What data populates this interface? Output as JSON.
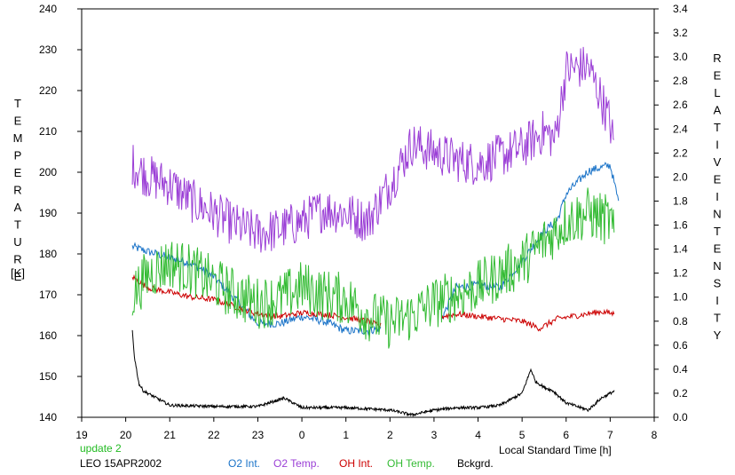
{
  "chart_data": {
    "type": "line",
    "station": "LEO 15APR2002",
    "update_label": "update 2",
    "xlabel": "Local Standard Time [h]",
    "ylabel_left_letters": [
      "T",
      "E",
      "M",
      "P",
      "E",
      "R",
      "A",
      "T",
      "U",
      "R",
      "E"
    ],
    "ylabel_left_unit": "[K]",
    "ylabel_right_word1": [
      "R",
      "E",
      "L",
      "A",
      "T",
      "I",
      "V",
      "E"
    ],
    "ylabel_right_word2": [
      "I",
      "N",
      "T",
      "E",
      "N",
      "S",
      "I",
      "T",
      "Y"
    ],
    "x_ticks": [
      "19",
      "20",
      "21",
      "22",
      "23",
      "0",
      "1",
      "2",
      "3",
      "4",
      "5",
      "6",
      "7",
      "8"
    ],
    "x_range": [
      19,
      32
    ],
    "y_left_ticks": [
      "140",
      "150",
      "160",
      "170",
      "180",
      "190",
      "200",
      "210",
      "220",
      "230",
      "240"
    ],
    "y_left_range": [
      140,
      240
    ],
    "y_right_ticks": [
      "0.0",
      "0.2",
      "0.4",
      "0.6",
      "0.8",
      "1.0",
      "1.2",
      "1.4",
      "1.6",
      "1.8",
      "2.0",
      "2.2",
      "2.4",
      "2.6",
      "2.8",
      "3.0",
      "3.2",
      "3.4"
    ],
    "y_right_range": [
      0,
      3.4
    ],
    "colors": {
      "o2_int": "#1a73c8",
      "o2_temp": "#9b3fd6",
      "oh_int": "#cc0000",
      "oh_temp": "#33bb33",
      "bckgrd": "#000000",
      "update": "#22bb22"
    },
    "series": [
      {
        "name": "O2 Int.",
        "axis": "right",
        "x": [
          20.15,
          20.5,
          21.0,
          21.5,
          22.0,
          22.5,
          23.0,
          23.5,
          24.0,
          24.5,
          25.0,
          25.5,
          25.75,
          27.2,
          27.5,
          28.0,
          28.5,
          29.0,
          29.5,
          29.8,
          30.0,
          30.5,
          31.0,
          31.2
        ],
        "y": [
          1.42,
          1.38,
          1.33,
          1.28,
          1.17,
          0.98,
          0.78,
          0.78,
          0.84,
          0.8,
          0.72,
          0.72,
          0.74,
          0.84,
          1.08,
          1.1,
          1.08,
          1.3,
          1.55,
          1.64,
          1.86,
          2.05,
          2.1,
          1.78
        ]
      },
      {
        "name": "O2 Temp.",
        "axis": "left",
        "x": [
          20.15,
          20.5,
          21.0,
          21.5,
          22.0,
          22.5,
          23.0,
          23.5,
          24.0,
          24.5,
          25.0,
          25.5,
          26.0,
          26.5,
          27.0,
          27.5,
          28.0,
          28.5,
          29.0,
          29.5,
          29.75,
          30.0,
          30.5,
          30.8,
          31.0,
          31.1
        ],
        "y": [
          202,
          199,
          197,
          193,
          190,
          187,
          185,
          186,
          188,
          191,
          190,
          188,
          197,
          207,
          205,
          203,
          202,
          204,
          206,
          210,
          208,
          225,
          226,
          218,
          212,
          205
        ]
      },
      {
        "name": "OH Int.",
        "axis": "right",
        "x": [
          20.15,
          20.5,
          21.0,
          21.5,
          22.0,
          22.5,
          23.0,
          23.5,
          24.0,
          24.5,
          25.0,
          25.5,
          25.75,
          27.2,
          27.5,
          28.0,
          28.5,
          29.0,
          29.4,
          29.8,
          30.8,
          31.1
        ],
        "y": [
          1.17,
          1.08,
          1.04,
          1.0,
          0.98,
          0.92,
          0.86,
          0.84,
          0.87,
          0.86,
          0.83,
          0.8,
          0.76,
          0.84,
          0.86,
          0.84,
          0.82,
          0.8,
          0.74,
          0.82,
          0.88,
          0.86
        ]
      },
      {
        "name": "OH Temp.",
        "axis": "left",
        "x": [
          20.15,
          20.5,
          21.0,
          21.5,
          22.0,
          22.5,
          23.0,
          23.5,
          24.0,
          24.5,
          25.0,
          25.5,
          26.0,
          26.5,
          27.0,
          27.5,
          28.0,
          28.5,
          29.0,
          29.5,
          30.0,
          30.5,
          31.0,
          31.1
        ],
        "y": [
          170,
          175,
          178,
          176,
          173,
          170,
          168,
          169,
          172,
          170,
          169,
          165,
          163,
          165,
          168,
          170,
          172,
          175,
          178,
          183,
          188,
          190,
          188,
          183
        ]
      },
      {
        "name": "Bckgrd.",
        "axis": "right",
        "x": [
          20.15,
          20.2,
          20.3,
          20.4,
          21.0,
          22.0,
          23.0,
          23.6,
          24.0,
          25.0,
          26.0,
          26.5,
          27.0,
          27.5,
          28.0,
          28.5,
          29.0,
          29.2,
          29.3,
          29.5,
          29.7,
          30.0,
          30.5,
          30.8,
          31.1
        ],
        "y": [
          0.72,
          0.5,
          0.28,
          0.22,
          0.1,
          0.09,
          0.09,
          0.16,
          0.08,
          0.08,
          0.06,
          0.02,
          0.06,
          0.08,
          0.08,
          0.1,
          0.2,
          0.4,
          0.3,
          0.25,
          0.22,
          0.12,
          0.06,
          0.16,
          0.22
        ]
      }
    ]
  }
}
